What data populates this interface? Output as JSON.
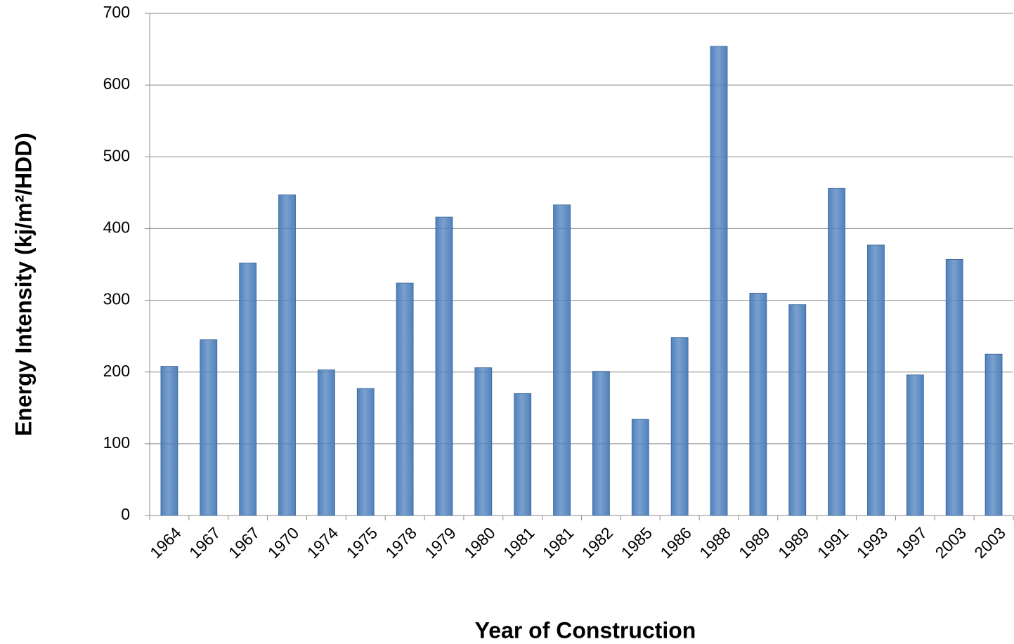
{
  "chart_data": {
    "type": "bar",
    "x_label": "Year of Construction",
    "y_label": "Energy Intensity (kj/m²/HDD)",
    "categories": [
      "1964",
      "1967",
      "1967",
      "1970",
      "1974",
      "1975",
      "1978",
      "1979",
      "1980",
      "1981",
      "1981",
      "1982",
      "1985",
      "1986",
      "1988",
      "1989",
      "1989",
      "1991",
      "1993",
      "1997",
      "2003",
      "2003"
    ],
    "values": [
      208,
      245,
      352,
      447,
      203,
      177,
      324,
      416,
      206,
      170,
      433,
      201,
      134,
      248,
      654,
      310,
      294,
      456,
      377,
      196,
      357,
      225
    ],
    "color": "#4f81bd",
    "ylim": [
      0,
      700
    ],
    "yticks": [
      0,
      100,
      200,
      300,
      400,
      500,
      600,
      700
    ],
    "grid": true
  }
}
